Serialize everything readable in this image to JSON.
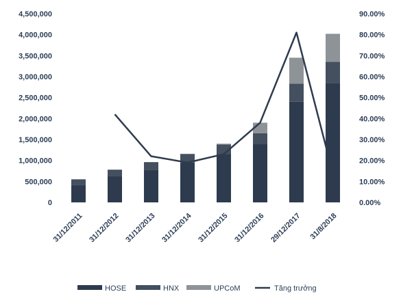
{
  "chart_data": {
    "type": "bar",
    "stacked": true,
    "categories": [
      "31/12/2011",
      "31/12/2012",
      "31/12/2013",
      "31/12/2014",
      "31/12/2015",
      "31/12/2016",
      "29/12/2017",
      "31/8/2018"
    ],
    "series": [
      {
        "name": "HOSE",
        "kind": "bar",
        "axis": "left",
        "color": "#2e3b4e",
        "values": [
          420000,
          620000,
          780000,
          950000,
          1150000,
          1400000,
          2400000,
          2850000
        ]
      },
      {
        "name": "HNX",
        "kind": "bar",
        "axis": "left",
        "color": "#44505f",
        "values": [
          130000,
          160000,
          180000,
          200000,
          230000,
          250000,
          430000,
          500000
        ]
      },
      {
        "name": "UPCoM",
        "kind": "bar",
        "axis": "left",
        "color": "#8e9398",
        "values": [
          0,
          0,
          0,
          10000,
          20000,
          250000,
          620000,
          670000
        ]
      },
      {
        "name": "Tăng trưởng",
        "kind": "line",
        "axis": "right",
        "color": "#2e3b4e",
        "values": [
          null,
          42,
          22,
          19,
          23,
          38,
          81,
          14
        ]
      }
    ],
    "yleft": {
      "min": 0,
      "max": 4500000,
      "step": 500000,
      "tick_labels": [
        "0",
        "500,000",
        "1,000,000",
        "1,500,000",
        "2,000,000",
        "2,500,000",
        "3,000,000",
        "3,500,000",
        "4,000,000",
        "4,500,000"
      ]
    },
    "yright": {
      "min": 0,
      "max": 90,
      "step": 10,
      "tick_labels": [
        "0.00%",
        "10.00%",
        "20.00%",
        "30.00%",
        "40.00%",
        "50.00%",
        "60.00%",
        "70.00%",
        "80.00%",
        "90.00%"
      ]
    },
    "grid": false,
    "legend_position": "bottom"
  }
}
